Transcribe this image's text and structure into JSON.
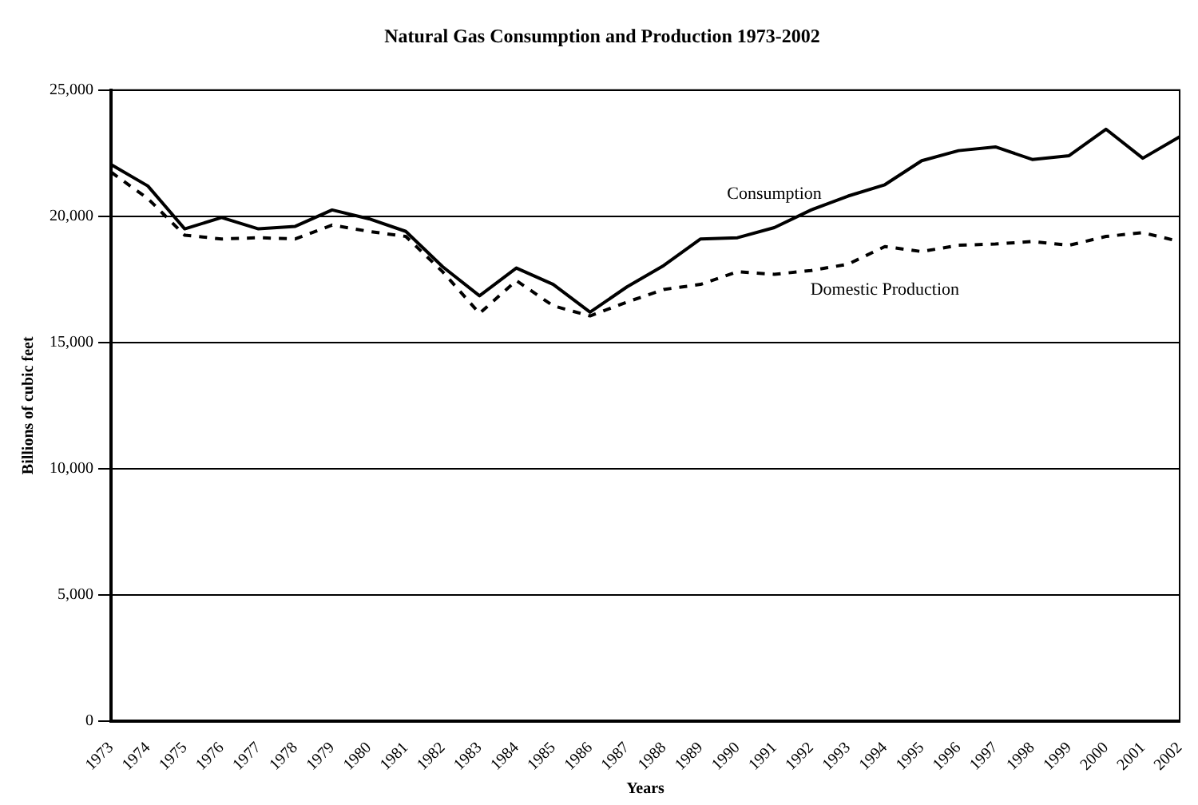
{
  "chart_data": {
    "type": "line",
    "title": "Natural Gas Consumption and Production 1973-2002",
    "xlabel": "Years",
    "ylabel": "Billions of cubic feet",
    "categories": [
      "1973",
      "1974",
      "1975",
      "1976",
      "1977",
      "1978",
      "1979",
      "1980",
      "1981",
      "1982",
      "1983",
      "1984",
      "1985",
      "1986",
      "1987",
      "1988",
      "1989",
      "1990",
      "1991",
      "1992",
      "1993",
      "1994",
      "1995",
      "1996",
      "1997",
      "1998",
      "1999",
      "2000",
      "2001",
      "2002"
    ],
    "series": [
      {
        "name": "Consumption",
        "color": "#000000",
        "line_style": "solid",
        "values": [
          22050,
          21200,
          19500,
          19950,
          19500,
          19600,
          20250,
          19900,
          19400,
          18000,
          16850,
          17950,
          17300,
          16200,
          17200,
          18050,
          19100,
          19150,
          19550,
          20250,
          20800,
          21250,
          22200,
          22600,
          22750,
          22250,
          22400,
          23450,
          22300,
          23150
        ]
      },
      {
        "name": "Domestic Production",
        "color": "#000000",
        "line_style": "dashed",
        "values": [
          21750,
          20700,
          19250,
          19100,
          19150,
          19100,
          19650,
          19400,
          19200,
          17800,
          16150,
          17450,
          16450,
          16050,
          16600,
          17100,
          17300,
          17800,
          17700,
          17850,
          18100,
          18800,
          18600,
          18850,
          18900,
          19000,
          18850,
          19200,
          19350,
          19000
        ]
      }
    ],
    "ylim": [
      0,
      25000
    ],
    "yticks": [
      0,
      {
        "value": 5000,
        "label": "5,000"
      },
      {
        "value": 10000,
        "label": "10,000"
      },
      {
        "value": 15000,
        "label": "15,000"
      },
      {
        "value": 20000,
        "label": "20,000"
      },
      {
        "value": 25000,
        "label": "25,000"
      }
    ],
    "grid": "y",
    "legend": false,
    "marker": "none"
  }
}
